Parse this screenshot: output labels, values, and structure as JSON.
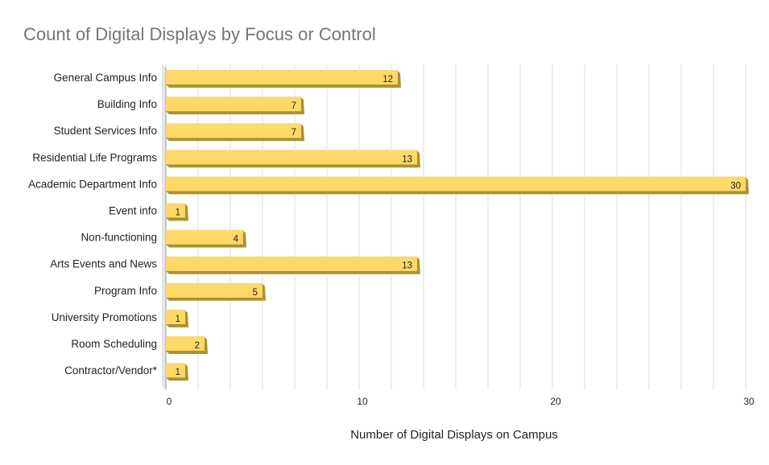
{
  "chart_data": {
    "type": "bar",
    "orientation": "horizontal",
    "title": "Count of Digital Displays by Focus or Control",
    "xlabel": "Number of Digital Displays on Campus",
    "ylabel": "",
    "categories": [
      "General Campus Info",
      "Building Info",
      "Student Services Info",
      "Residential Life Programs",
      "Academic Department Info",
      "Event info",
      "Non-functioning",
      "Arts Events and News",
      "Program Info",
      "University Promotions",
      "Room Scheduling",
      "Contractor/Vendor*"
    ],
    "values": [
      12,
      7,
      7,
      13,
      30,
      1,
      4,
      13,
      5,
      1,
      2,
      1
    ],
    "xlim": [
      0,
      30
    ],
    "xticks": [
      0,
      10,
      20,
      30
    ],
    "grid": true,
    "legend": "none",
    "bar_color": "#ffd966",
    "bar_shadow_color": "#a8903f",
    "axis_wall_color": "#e6e6e6",
    "grid_color": "#dddddd",
    "title_color": "#757575"
  }
}
